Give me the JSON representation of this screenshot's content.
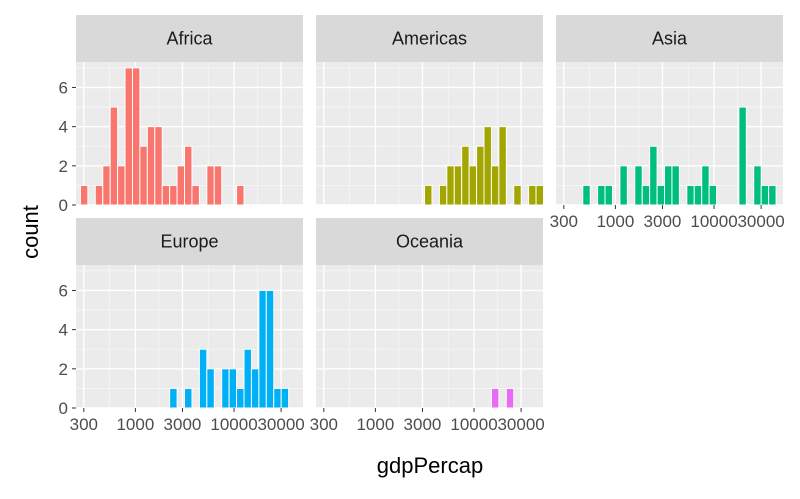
{
  "chart_data": {
    "type": "bar",
    "chart_kind": "faceted histogram",
    "xlabel": "gdpPercap",
    "ylabel": "count",
    "x_scale": "log10",
    "xlim": [
      250,
      50000
    ],
    "ylim": [
      0,
      7.3
    ],
    "x_ticks": [
      300,
      1000,
      3000,
      10000,
      30000
    ],
    "x_tick_labels": [
      "300",
      "1000",
      "3000",
      "10000",
      "30000"
    ],
    "y_ticks": [
      0,
      2,
      4,
      6
    ],
    "y_tick_labels": [
      "0",
      "2",
      "4",
      "6"
    ],
    "bin_width_log10": 0.0757,
    "grid": true,
    "legend": "none",
    "bin_lefts": [
      277,
      330,
      392,
      467,
      555,
      660,
      785,
      934,
      1111,
      1321,
      1572,
      1870,
      2224,
      2646,
      3147,
      3743,
      4453,
      5297,
      6301,
      7495,
      8915,
      10605,
      12615,
      15006,
      17850,
      21233,
      25257,
      30044,
      35738,
      42511
    ],
    "facets": [
      {
        "name": "Africa",
        "color": "#F8766D",
        "counts": [
          1,
          0,
          1,
          2,
          5,
          2,
          7,
          7,
          3,
          4,
          4,
          1,
          1,
          2,
          3,
          1,
          0,
          2,
          2,
          0,
          0,
          1,
          0,
          0,
          0,
          0,
          0,
          0,
          0,
          0
        ]
      },
      {
        "name": "Americas",
        "color": "#A3A500",
        "counts": [
          0,
          0,
          0,
          0,
          0,
          0,
          0,
          0,
          0,
          0,
          0,
          0,
          0,
          0,
          1,
          0,
          1,
          2,
          2,
          3,
          2,
          3,
          4,
          2,
          4,
          0,
          1,
          0,
          1,
          1
        ]
      },
      {
        "name": "Asia",
        "color": "#00BF7D",
        "counts": [
          0,
          0,
          0,
          1,
          0,
          1,
          1,
          0,
          2,
          0,
          2,
          1,
          3,
          1,
          2,
          2,
          0,
          1,
          1,
          2,
          1,
          0,
          0,
          0,
          5,
          0,
          2,
          1,
          1,
          0
        ]
      },
      {
        "name": "Europe",
        "color": "#00B0F6",
        "counts": [
          0,
          0,
          0,
          0,
          0,
          0,
          0,
          0,
          0,
          0,
          0,
          0,
          1,
          0,
          1,
          0,
          3,
          2,
          0,
          2,
          2,
          1,
          3,
          2,
          6,
          6,
          1,
          1,
          0,
          0
        ]
      },
      {
        "name": "Oceania",
        "color": "#E76BF3",
        "counts": [
          0,
          0,
          0,
          0,
          0,
          0,
          0,
          0,
          0,
          0,
          0,
          0,
          0,
          0,
          0,
          0,
          0,
          0,
          0,
          0,
          0,
          0,
          0,
          1,
          0,
          1,
          0,
          0,
          0,
          0
        ]
      }
    ]
  }
}
